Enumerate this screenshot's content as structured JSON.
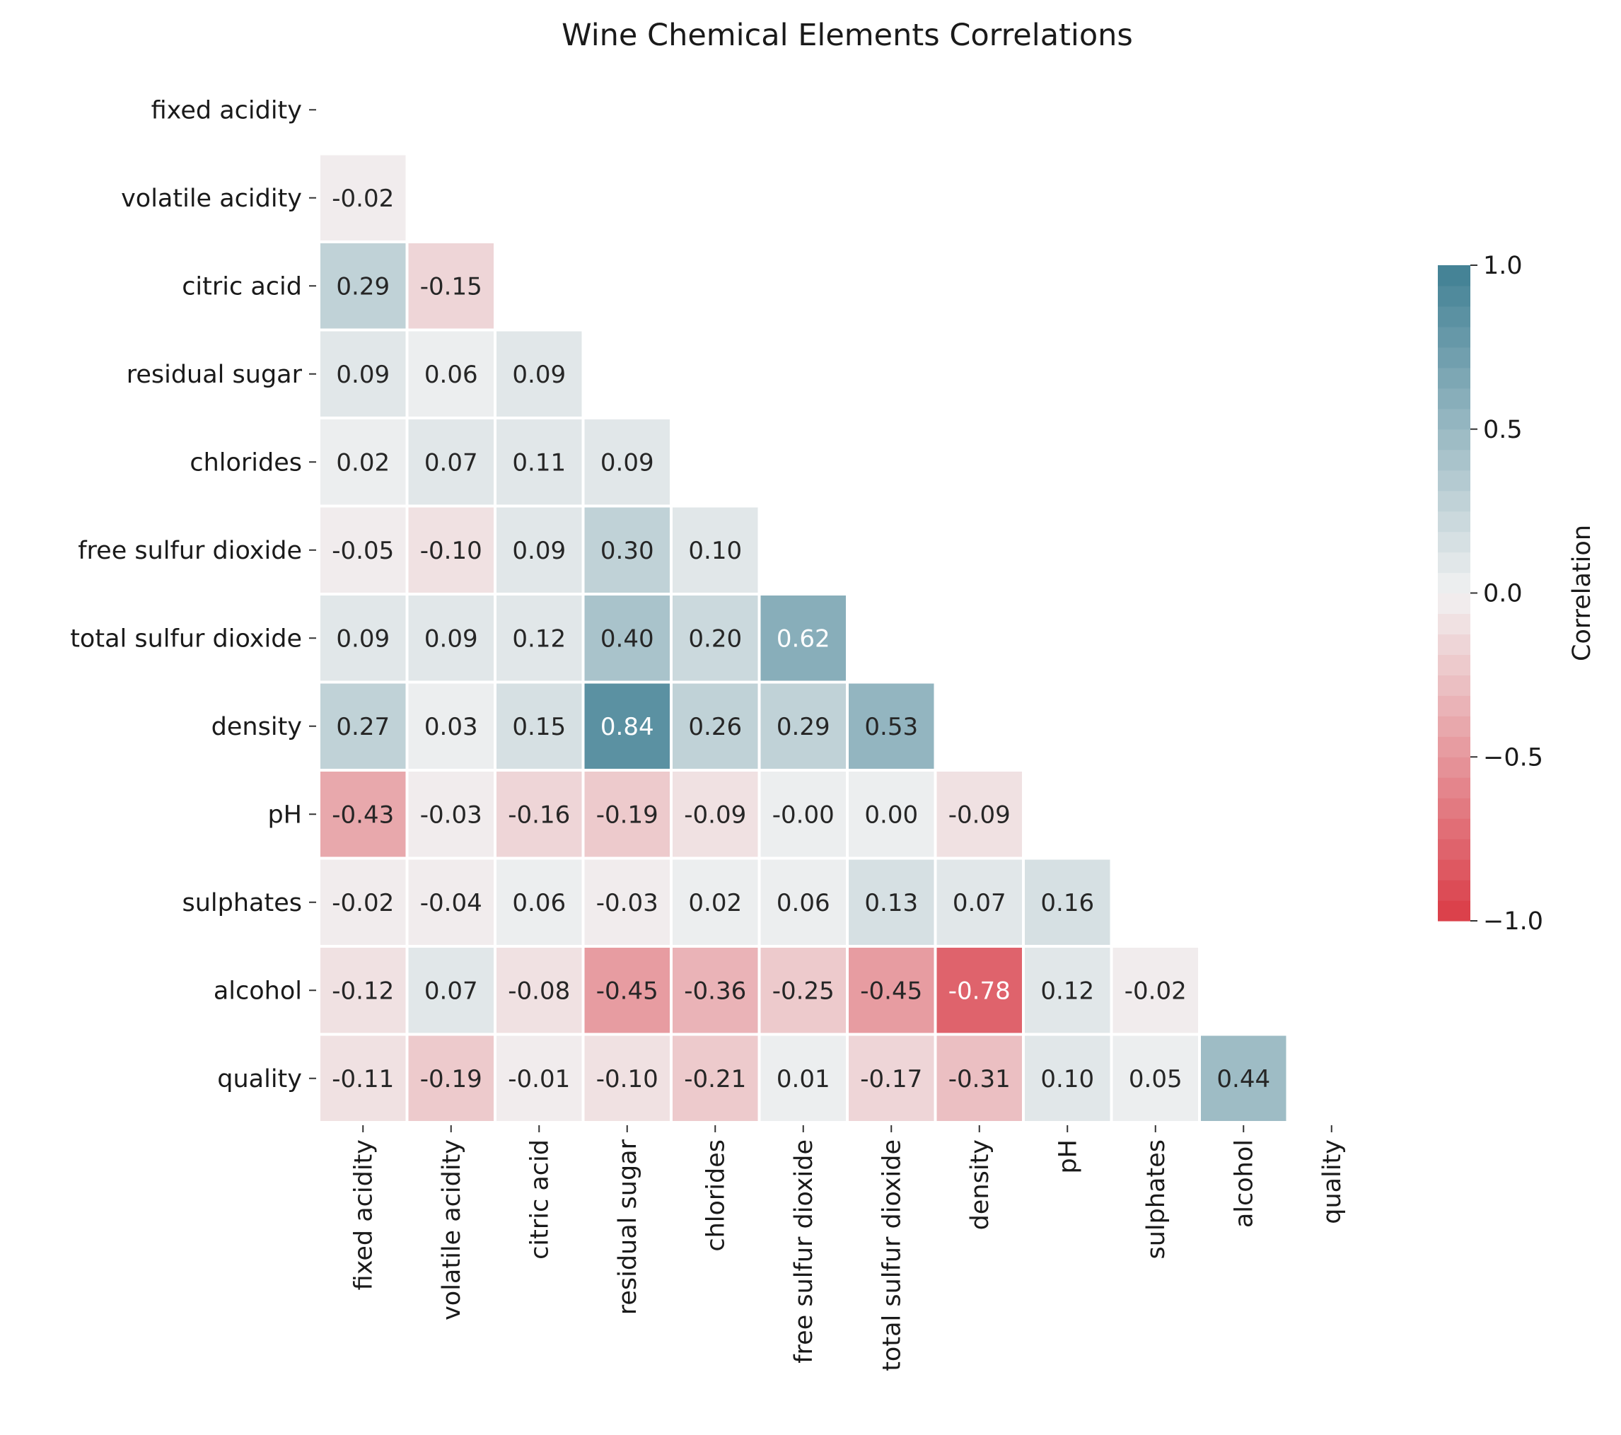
{
  "chart_data": {
    "type": "heatmap",
    "title": "Wine Chemical Elements Correlations",
    "labels": [
      "fixed acidity",
      "volatile acidity",
      "citric acid",
      "residual sugar",
      "chlorides",
      "free sulfur dioxide",
      "total sulfur dioxide",
      "density",
      "pH",
      "sulphates",
      "alcohol",
      "quality"
    ],
    "values": [
      [],
      [
        "-0.02"
      ],
      [
        "0.29",
        "-0.15"
      ],
      [
        "0.09",
        "0.06",
        "0.09"
      ],
      [
        "0.02",
        "0.07",
        "0.11",
        "0.09"
      ],
      [
        "-0.05",
        "-0.10",
        "0.09",
        "0.30",
        "0.10"
      ],
      [
        "0.09",
        "0.09",
        "0.12",
        "0.40",
        "0.20",
        "0.62"
      ],
      [
        "0.27",
        "0.03",
        "0.15",
        "0.84",
        "0.26",
        "0.29",
        "0.53"
      ],
      [
        "-0.43",
        "-0.03",
        "-0.16",
        "-0.19",
        "-0.09",
        "-0.00",
        "0.00",
        "-0.09"
      ],
      [
        "-0.02",
        "-0.04",
        "0.06",
        "-0.03",
        "0.02",
        "0.06",
        "0.13",
        "0.07",
        "0.16"
      ],
      [
        "-0.12",
        "0.07",
        "-0.08",
        "-0.45",
        "-0.36",
        "-0.25",
        "-0.45",
        "-0.78",
        "0.12",
        "-0.02"
      ],
      [
        "-0.11",
        "-0.19",
        "-0.01",
        "-0.10",
        "-0.21",
        "0.01",
        "-0.17",
        "-0.31",
        "0.10",
        "0.05",
        "0.44"
      ]
    ],
    "mask": "upper triangle incl. diagonal",
    "colorbar": {
      "label": "Correlation",
      "range": [
        -1.0,
        1.0
      ],
      "ticks": [
        "1.0",
        "0.5",
        "0.0",
        "−0.5",
        "−1.0"
      ],
      "tick_values": [
        1.0,
        0.5,
        0.0,
        -0.5,
        -1.0
      ],
      "levels": 32
    },
    "colors": {
      "negative": "#da3b46",
      "center": "#f2f2f2",
      "positive": "#3f7f93"
    }
  }
}
